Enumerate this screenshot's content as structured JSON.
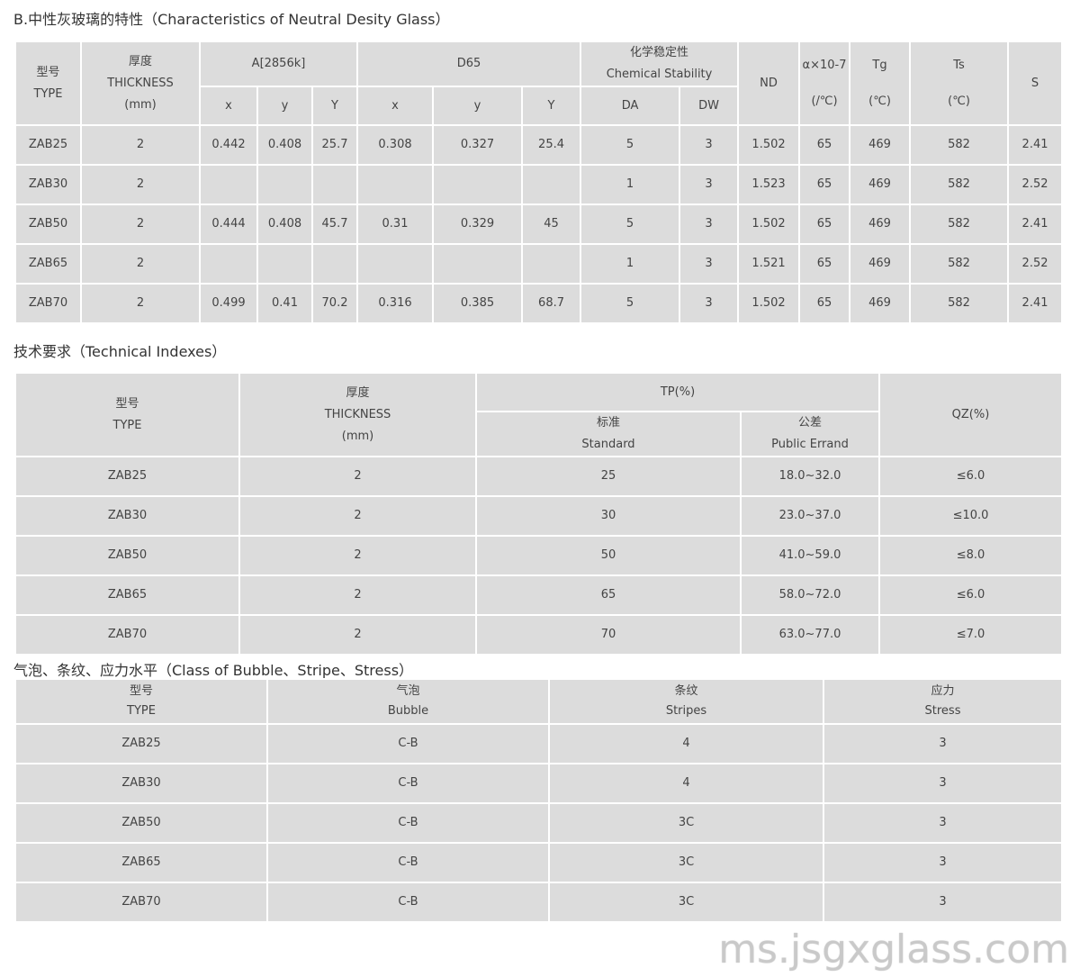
{
  "section1": {
    "title": "B.中性灰玻璃的特性（Characteristics of Neutral Desity Glass）",
    "headers": {
      "type": "型号\nTYPE",
      "thickness": "厚度\nTHICKNESS\n(mm)",
      "a2856": "A[2856k]",
      "d65": "D65",
      "chem": "化学稳定性\nChemical Stability",
      "nd": "ND",
      "alpha": "α×10-7\n\n(/℃)",
      "tg": "Tg\n\n(℃)",
      "ts": "Ts\n\n(℃)",
      "s": "S",
      "sub": [
        "x",
        "y",
        "Y",
        "x",
        "y",
        "Y",
        "DA",
        "DW"
      ]
    },
    "rows": [
      [
        "ZAB25",
        "2",
        "0.442",
        "0.408",
        "25.7",
        "0.308",
        "0.327",
        "25.4",
        "5",
        "3",
        "1.502",
        "65",
        "469",
        "582",
        "2.41"
      ],
      [
        "ZAB30",
        "2",
        "",
        "",
        "",
        "",
        "",
        "",
        "1",
        "3",
        "1.523",
        "65",
        "469",
        "582",
        "2.52"
      ],
      [
        "ZAB50",
        "2",
        "0.444",
        "0.408",
        "45.7",
        "0.31",
        "0.329",
        "45",
        "5",
        "3",
        "1.502",
        "65",
        "469",
        "582",
        "2.41"
      ],
      [
        "ZAB65",
        "2",
        "",
        "",
        "",
        "",
        "",
        "",
        "1",
        "3",
        "1.521",
        "65",
        "469",
        "582",
        "2.52"
      ],
      [
        "ZAB70",
        "2",
        "0.499",
        "0.41",
        "70.2",
        "0.316",
        "0.385",
        "68.7",
        "5",
        "3",
        "1.502",
        "65",
        "469",
        "582",
        "2.41"
      ]
    ]
  },
  "section2": {
    "title": "技术要求（Technical Indexes）",
    "headers": {
      "type": "型号\nTYPE",
      "thickness": "厚度\nTHICKNESS\n(mm)",
      "tp": "TP(%)",
      "standard": "标准\nStandard",
      "errand": "公差\nPublic Errand",
      "qz": "QZ(%)"
    },
    "rows": [
      [
        "ZAB25",
        "2",
        "25",
        "18.0~32.0",
        "≤6.0"
      ],
      [
        "ZAB30",
        "2",
        "30",
        "23.0~37.0",
        "≤10.0"
      ],
      [
        "ZAB50",
        "2",
        "50",
        "41.0~59.0",
        "≤8.0"
      ],
      [
        "ZAB65",
        "2",
        "65",
        "58.0~72.0",
        "≤6.0"
      ],
      [
        "ZAB70",
        "2",
        "70",
        "63.0~77.0",
        "≤7.0"
      ]
    ]
  },
  "section3": {
    "title": "气泡、条纹、应力水平（Class of Bubble、Stripe、Stress）",
    "headers": [
      "型号\nTYPE",
      "气泡\nBubble",
      "条纹\nStripes",
      "应力\nStress"
    ],
    "rows": [
      [
        "ZAB25",
        "C-B",
        "4",
        "3"
      ],
      [
        "ZAB30",
        "C-B",
        "4",
        "3"
      ],
      [
        "ZAB50",
        "C-B",
        "3C",
        "3"
      ],
      [
        "ZAB65",
        "C-B",
        "3C",
        "3"
      ],
      [
        "ZAB70",
        "C-B",
        "3C",
        "3"
      ]
    ]
  },
  "watermark": "ms.jsgxglass.com"
}
